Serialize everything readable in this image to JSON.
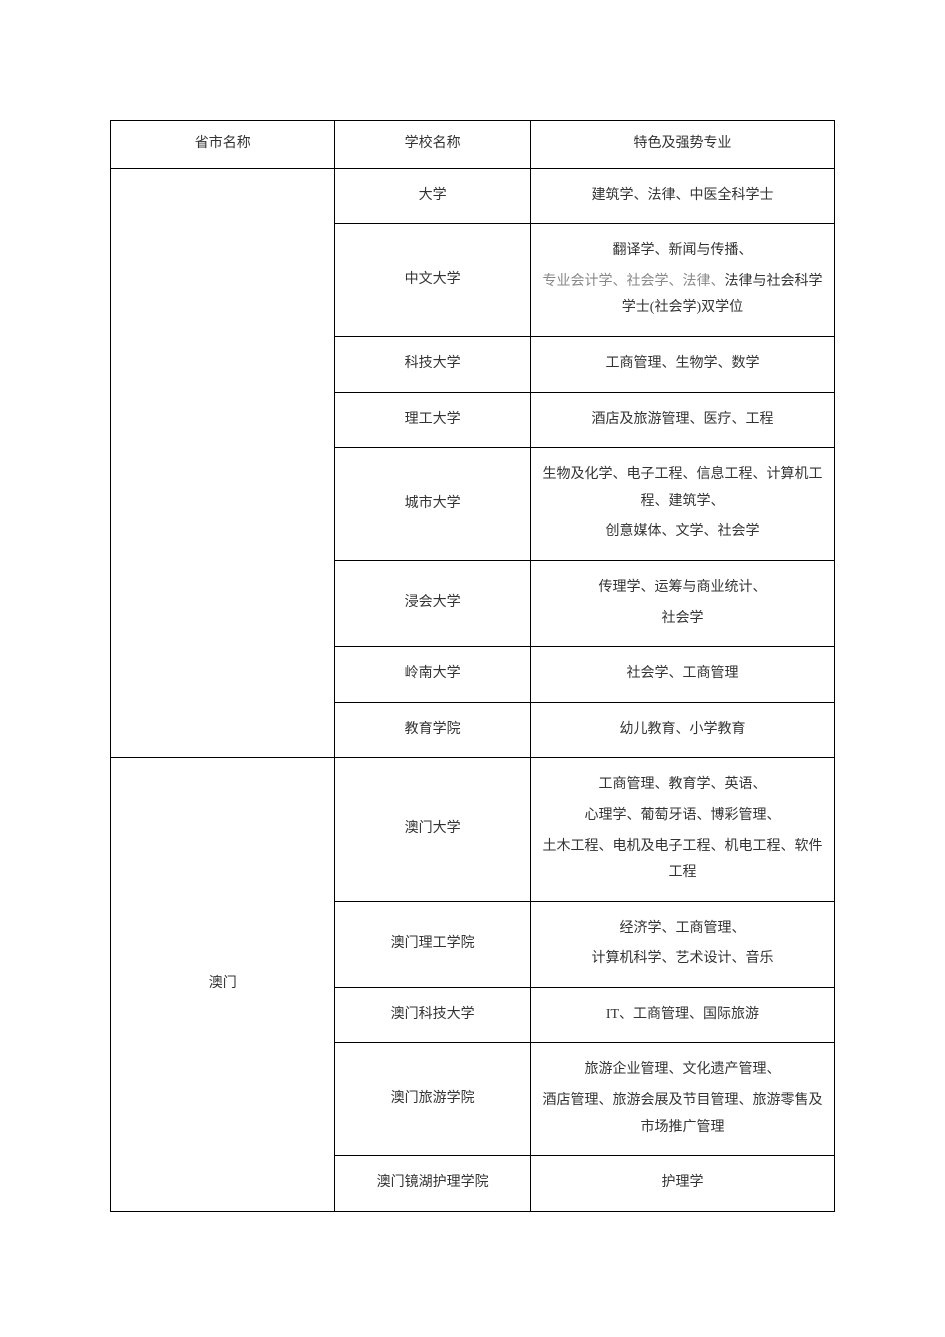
{
  "table": {
    "header": {
      "col1": "省市名称",
      "col2": "学校名称",
      "col3": "特色及强势专业"
    },
    "group1": {
      "region": "",
      "rows": [
        {
          "school": "大学",
          "majors": [
            "建筑学、法律、中医全科学士"
          ]
        },
        {
          "school": "中文大学",
          "majors_line1": "翻译学、新闻与传播、",
          "majors_muted": "专业会计学、社会学、法律、",
          "majors_line2": "法律与社会科学学士(社会学)双学位"
        },
        {
          "school": "科技大学",
          "majors": [
            "工商管理、生物学、数学"
          ]
        },
        {
          "school": "理工大学",
          "majors": [
            "酒店及旅游管理、医疗、工程"
          ]
        },
        {
          "school": "城市大学",
          "majors": [
            "生物及化学、电子工程、信息工程、计算机工程、建筑学、",
            "创意媒体、文学、社会学"
          ]
        },
        {
          "school": "浸会大学",
          "majors": [
            "传理学、运筹与商业统计、",
            "社会学"
          ]
        },
        {
          "school": "岭南大学",
          "majors": [
            "社会学、工商管理"
          ]
        },
        {
          "school": "教育学院",
          "majors": [
            "幼儿教育、小学教育"
          ]
        }
      ]
    },
    "group2": {
      "region": "澳门",
      "rows": [
        {
          "school": "澳门大学",
          "majors": [
            "工商管理、教育学、英语、",
            "心理学、葡萄牙语、博彩管理、",
            "土木工程、电机及电子工程、机电工程、软件工程"
          ]
        },
        {
          "school": "澳门理工学院",
          "majors": [
            "经济学、工商管理、",
            "计算机科学、艺术设计、音乐"
          ]
        },
        {
          "school": "澳门科技大学",
          "majors": [
            "IT、工商管理、国际旅游"
          ]
        },
        {
          "school": "澳门旅游学院",
          "majors": [
            "旅游企业管理、文化遗产管理、",
            "酒店管理、旅游会展及节目管理、旅游零售及市场推广管理"
          ]
        },
        {
          "school": "澳门镜湖护理学院",
          "majors": [
            "护理学"
          ]
        }
      ]
    }
  },
  "style": {
    "border_color": "#000000",
    "background_color": "#ffffff",
    "text_color": "#333333",
    "muted_color": "#888888",
    "font_size": 14,
    "font_family": "SimSun"
  }
}
